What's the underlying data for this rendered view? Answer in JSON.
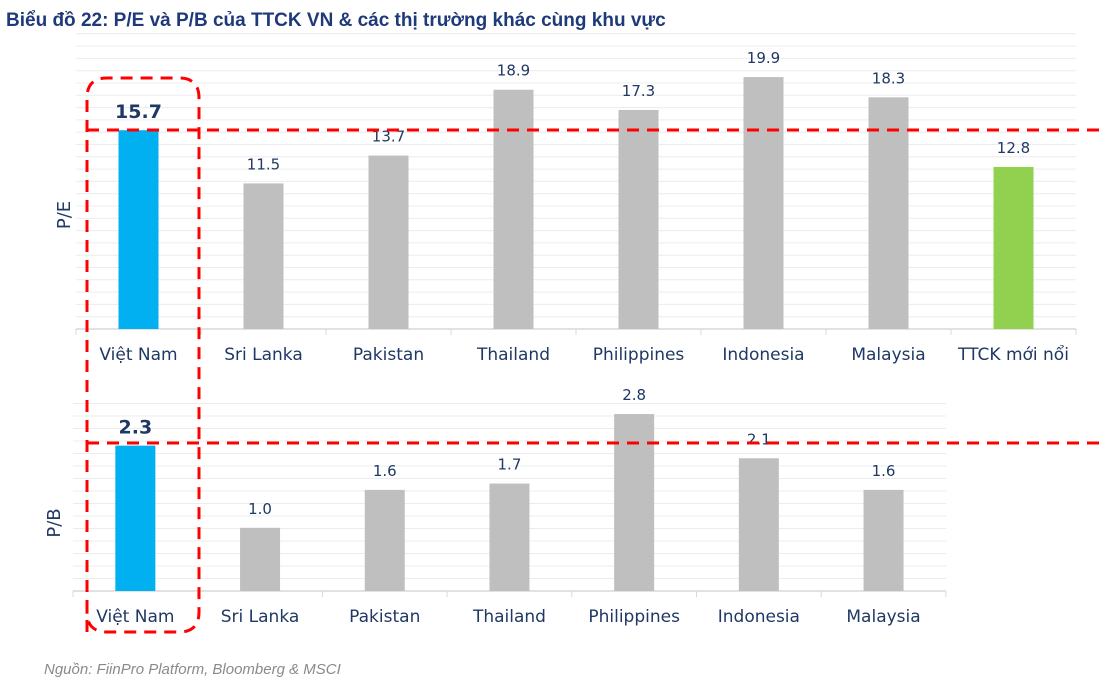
{
  "title": "Biểu đồ 22: P/E và P/B của TTCK VN & các thị trường khác cùng khu vực",
  "source": "Nguồn: FiinPro Platform, Bloomberg & MSCI",
  "colors": {
    "highlight": "#00b0f0",
    "other": "#bfbfbf",
    "emerging": "#92d050",
    "label": "#1f3864",
    "dash": "#ff0000"
  },
  "chart_data": [
    {
      "type": "bar",
      "ylabel": "P/E",
      "ylim": [
        0,
        22
      ],
      "categories": [
        "Việt Nam",
        "Sri Lanka",
        "Pakistan",
        "Thailand",
        "Philippines",
        "Indonesia",
        "Malaysia",
        "TTCK mới nổi"
      ],
      "values": [
        15.7,
        11.5,
        13.7,
        18.9,
        17.3,
        19.9,
        18.3,
        12.8
      ],
      "labels": [
        "15.7",
        "11.5",
        "13.7",
        "18.9",
        "17.3",
        "19.9",
        "18.3",
        "12.8"
      ]
    },
    {
      "type": "bar",
      "ylabel": "P/B",
      "ylim": [
        0,
        3.1
      ],
      "categories": [
        "Việt Nam",
        "Sri Lanka",
        "Pakistan",
        "Thailand",
        "Philippines",
        "Indonesia",
        "Malaysia"
      ],
      "values": [
        2.3,
        1.0,
        1.6,
        1.7,
        2.8,
        2.1,
        1.6
      ],
      "labels": [
        "2.3",
        "1.0",
        "1.6",
        "1.7",
        "2.8",
        "2.1",
        "1.6"
      ]
    }
  ]
}
